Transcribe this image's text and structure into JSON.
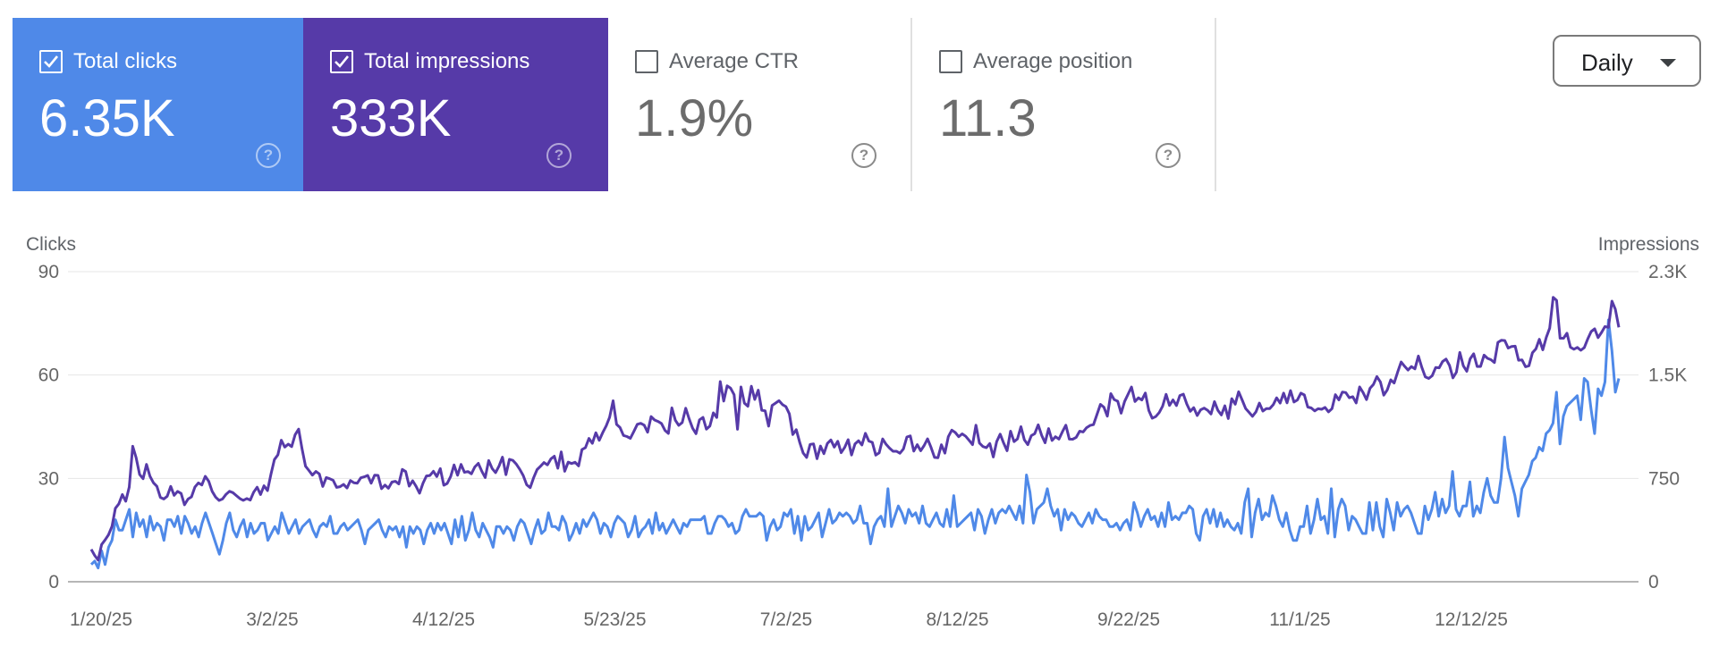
{
  "metrics": {
    "clicks": {
      "label": "Total clicks",
      "value": "6.35K",
      "checked": true,
      "color": "#4f89e8"
    },
    "impressions": {
      "label": "Total impressions",
      "value": "333K",
      "checked": true,
      "color": "#563aa8"
    },
    "ctr": {
      "label": "Average CTR",
      "value": "1.9%",
      "checked": false
    },
    "position": {
      "label": "Average position",
      "value": "11.3",
      "checked": false
    }
  },
  "help_glyph": "?",
  "dropdown": {
    "selected": "Daily"
  },
  "chart_data": {
    "type": "line",
    "left_axis": {
      "label": "Clicks",
      "range": [
        0,
        90
      ],
      "ticks": [
        "0",
        "30",
        "60",
        "90"
      ]
    },
    "right_axis": {
      "label": "Impressions",
      "range": [
        0,
        2300
      ],
      "ticks": [
        "0",
        "750",
        "1.5K",
        "2.3K"
      ]
    },
    "x_tick_labels": [
      "1/20/25",
      "3/2/25",
      "4/12/25",
      "5/23/25",
      "7/2/25",
      "8/12/25",
      "9/22/25",
      "11/1/25",
      "12/12/25"
    ],
    "x_start": "1/20/25",
    "x_end": "1/21/26",
    "grid": true,
    "series": [
      {
        "name": "Total clicks",
        "axis": "left",
        "color": "#4f89e8",
        "values": [
          5,
          6,
          4,
          9,
          5,
          10,
          12,
          18,
          15,
          15,
          18,
          21,
          13,
          20,
          16,
          18,
          13,
          19,
          15,
          17,
          16,
          12,
          18,
          18,
          16,
          19,
          14,
          19,
          17,
          14,
          16,
          13,
          17,
          20,
          17,
          14,
          11,
          8,
          12,
          17,
          20,
          15,
          13,
          16,
          18,
          13,
          17,
          14,
          15,
          17,
          17,
          12,
          14,
          16,
          14,
          20,
          17,
          14,
          16,
          18,
          14,
          16,
          17,
          18,
          15,
          13,
          16,
          17,
          16,
          19,
          14,
          14,
          16,
          17,
          15,
          16,
          17,
          18,
          15,
          11,
          15,
          16,
          17,
          18,
          15,
          13,
          16,
          15,
          16,
          13,
          16,
          10,
          16,
          14,
          16,
          15,
          11,
          15,
          17,
          14,
          17,
          15,
          17,
          14,
          11,
          18,
          13,
          19,
          12,
          15,
          20,
          15,
          13,
          17,
          15,
          13,
          10,
          16,
          16,
          14,
          16,
          15,
          12,
          16,
          18,
          17,
          14,
          11,
          15,
          18,
          14,
          15,
          20,
          16,
          16,
          15,
          19,
          17,
          12,
          14,
          17,
          14,
          18,
          16,
          18,
          20,
          18,
          14,
          17,
          16,
          13,
          17,
          19,
          18,
          17,
          13,
          15,
          19,
          13,
          15,
          16,
          18,
          14,
          20,
          15,
          17,
          14,
          16,
          18,
          16,
          14,
          17,
          16,
          18,
          18,
          18,
          18,
          19,
          14,
          14,
          17,
          19,
          19,
          18,
          16,
          17,
          14,
          15,
          19,
          21,
          19,
          19,
          19,
          20,
          19,
          12,
          16,
          18,
          15,
          16,
          20,
          19,
          21,
          14,
          19,
          12,
          19,
          15,
          16,
          18,
          20,
          13,
          17,
          21,
          17,
          18,
          20,
          19,
          20,
          19,
          17,
          18,
          22,
          17,
          17,
          11,
          16,
          18,
          19,
          16,
          27,
          16,
          19,
          22,
          20,
          17,
          21,
          19,
          20,
          17,
          22,
          17,
          16,
          18,
          20,
          17,
          16,
          21,
          16,
          25,
          16,
          17,
          18,
          19,
          20,
          15,
          21,
          19,
          14,
          18,
          21,
          17,
          20,
          21,
          20,
          22,
          20,
          18,
          22,
          17,
          31,
          26,
          17,
          21,
          22,
          23,
          27,
          22,
          19,
          21,
          15,
          21,
          18,
          20,
          19,
          17,
          16,
          18,
          20,
          17,
          21,
          19,
          18,
          18,
          16,
          16,
          17,
          15,
          17,
          18,
          15,
          23,
          20,
          16,
          19,
          21,
          18,
          19,
          16,
          20,
          16,
          23,
          18,
          19,
          18,
          20,
          20,
          22,
          21,
          14,
          12,
          19,
          21,
          17,
          21,
          16,
          20,
          16,
          18,
          16,
          15,
          17,
          14,
          23,
          27,
          13,
          20,
          24,
          18,
          20,
          19,
          25,
          22,
          18,
          16,
          20,
          15,
          12,
          12,
          16,
          16,
          22,
          14,
          18,
          24,
          18,
          19,
          14,
          27,
          13,
          21,
          24,
          22,
          15,
          19,
          18,
          16,
          14,
          14,
          23,
          15,
          23,
          16,
          13,
          24,
          20,
          15,
          23,
          19,
          21,
          22,
          20,
          17,
          14,
          14,
          22,
          18,
          21,
          26,
          19,
          24,
          20,
          22,
          32,
          21,
          19,
          22,
          22,
          29,
          19,
          22,
          20,
          26,
          30,
          25,
          23,
          23,
          30,
          42,
          33,
          29,
          25,
          19,
          27,
          29,
          31,
          35,
          36,
          39,
          38,
          43,
          44,
          46,
          55,
          40,
          48,
          51,
          52,
          53,
          54,
          47,
          59,
          58,
          50,
          43,
          56,
          54,
          58,
          76,
          67,
          55,
          59
        ]
      },
      {
        "name": "Total impressions",
        "axis": "right",
        "color": "#563aa8",
        "values": [
          240,
          195,
          161,
          276,
          310,
          348,
          410,
          545,
          578,
          647,
          597,
          702,
          1005,
          920,
          796,
          764,
          870,
          782,
          734,
          708,
          626,
          614,
          634,
          707,
          641,
          670,
          655,
          571,
          613,
          630,
          702,
          733,
          718,
          782,
          745,
          671,
          628,
          603,
          614,
          648,
          671,
          661,
          639,
          617,
          604,
          617,
          606,
          664,
          701,
          647,
          712,
          676,
          796,
          906,
          941,
          1050,
          999,
          1021,
          1002,
          1091,
          1132,
          986,
          857,
          825,
          791,
          818,
          800,
          707,
          773,
          764,
          752,
          700,
          705,
          722,
          695,
          751,
          734,
          731,
          771,
          778,
          789,
          731,
          791,
          789,
          690,
          717,
          693,
          739,
          745,
          725,
          833,
          817,
          709,
          749,
          708,
          657,
          732,
          785,
          788,
          819,
          780,
          839,
          716,
          729,
          781,
          866,
          790,
          870,
          812,
          817,
          801,
          852,
          878,
          820,
          773,
          899,
          840,
          809,
          859,
          924,
          794,
          908,
          900,
          872,
          833,
          788,
          719,
          698,
          771,
          832,
          857,
          884,
          867,
          911,
          931,
          842,
          963,
          819,
          887,
          877,
          886,
          859,
          980,
          995,
          1063,
          1027,
          1105,
          1049,
          1106,
          1156,
          1220,
          1342,
          1167,
          1144,
          1085,
          1077,
          1064,
          1115,
          1168,
          1175,
          1161,
          1109,
          1225,
          1200,
          1189,
          1174,
          1123,
          1100,
          1290,
          1198,
          1160,
          1181,
          1287,
          1208,
          1139,
          1098,
          1201,
          1219,
          1132,
          1155,
          1253,
          1218,
          1485,
          1340,
          1453,
          1436,
          1387,
          1131,
          1445,
          1325,
          1302,
          1450,
          1352,
          1421,
          1272,
          1268,
          1154,
          1308,
          1325,
          1343,
          1314,
          1299,
          1245,
          1092,
          1128,
          1033,
          955,
          922,
          1019,
          1023,
          913,
          1006,
          950,
          1026,
          1052,
          999,
          1042,
          957,
          996,
          1054,
          940,
          1023,
          1046,
          1015,
          1101,
          1043,
          1034,
          939,
          956,
          1059,
          1019,
          991,
          968,
          968,
          953,
          985,
          1074,
          1082,
          969,
          1017,
          972,
          1011,
          1060,
          996,
          922,
          920,
          1016,
          954,
          1076,
          1125,
          1107,
          1076,
          1097,
          1079,
          1049,
          1017,
          1161,
          1029,
          1003,
          994,
          1025,
          925,
          1040,
          1095,
          1028,
          972,
          1117,
          1039,
          1059,
          1150,
          1053,
          1017,
          1084,
          1098,
          1164,
          1086,
          1031,
          1136,
          1048,
          1076,
          1058,
          1113,
          1161,
          1058,
          1057,
          1071,
          1117,
          1111,
          1143,
          1159,
          1165,
          1240,
          1316,
          1295,
          1228,
          1395,
          1351,
          1339,
          1250,
          1337,
          1391,
          1444,
          1337,
          1364,
          1348,
          1400,
          1270,
          1213,
          1225,
          1255,
          1302,
          1390,
          1308,
          1349,
          1307,
          1381,
          1391,
          1318,
          1264,
          1291,
          1233,
          1275,
          1288,
          1272,
          1244,
          1336,
          1271,
          1237,
          1305,
          1210,
          1358,
          1317,
          1409,
          1349,
          1285,
          1257,
          1227,
          1261,
          1325,
          1266,
          1284,
          1284,
          1313,
          1364,
          1325,
          1399,
          1327,
          1418,
          1333,
          1348,
          1399,
          1385,
          1296,
          1289,
          1267,
          1283,
          1279,
          1293,
          1260,
          1284,
          1387,
          1349,
          1407,
          1403,
          1365,
          1373,
          1326,
          1445,
          1404,
          1351,
          1435,
          1463,
          1522,
          1482,
          1384,
          1423,
          1497,
          1474,
          1555,
          1630,
          1599,
          1570,
          1596,
          1579,
          1674,
          1591,
          1519,
          1508,
          1528,
          1589,
          1587,
          1633,
          1652,
          1604,
          1512,
          1554,
          1701,
          1602,
          1561,
          1654,
          1691,
          1597,
          1597,
          1681,
          1657,
          1647,
          1626,
          1776,
          1791,
          1789,
          1733,
          1745,
          1747,
          1643,
          1645,
          1595,
          1602,
          1698,
          1727,
          1798,
          1720,
          1813,
          1881,
          2110,
          2087,
          1806,
          1806,
          1843,
          1739,
          1725,
          1738,
          1717,
          1737,
          1800,
          1856,
          1876,
          1811,
          1849,
          1893,
          1887,
          2081,
          2021,
          1887
        ]
      }
    ]
  }
}
